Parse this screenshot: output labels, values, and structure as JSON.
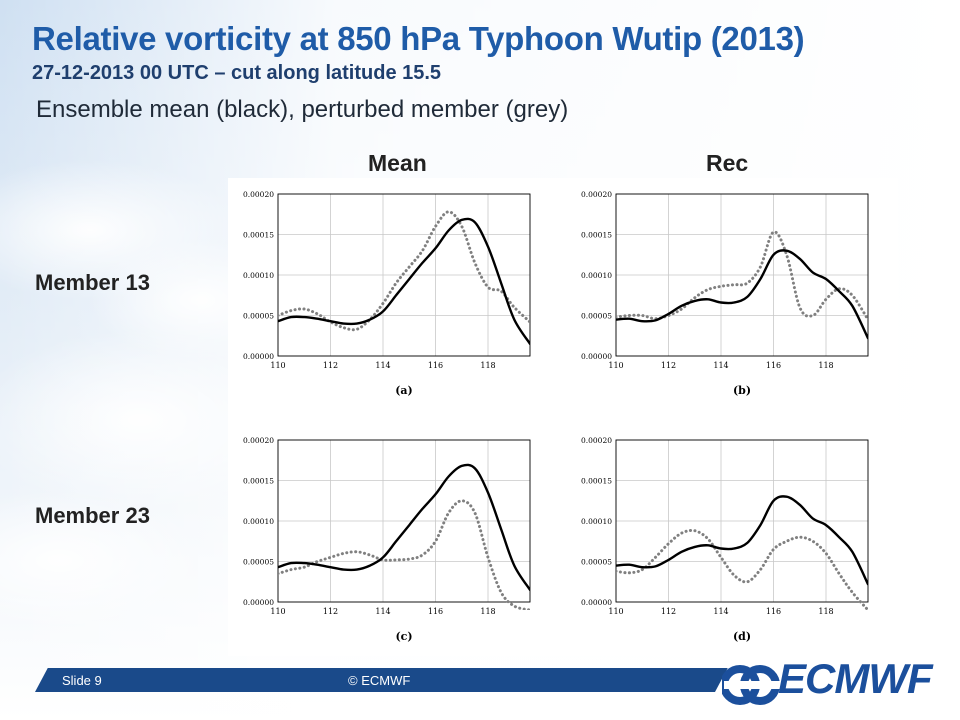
{
  "slide": {
    "title": "Relative vorticity at 850 hPa Typhoon Wutip (2013)",
    "subtitle": "27-12-2013  00 UTC – cut along latitude 15.5",
    "description": "Ensemble mean (black), perturbed member (grey)",
    "column_headers": [
      "Mean",
      "Rec"
    ],
    "row_headers": [
      "Member 13",
      "Member 23"
    ],
    "footer_slide": "Slide 9",
    "footer_copyright": "© ECMWF",
    "logo_text": "ECMWF",
    "colors": {
      "title": "#1f5ca8",
      "footer_bar": "#1a4a8a",
      "logo": "#1b4f9c",
      "mean_line": "#000000",
      "member_line": "#808080"
    }
  },
  "chart_data": [
    {
      "type": "line",
      "panel_label": "(a)",
      "xlim": [
        110,
        119.6
      ],
      "ylim": [
        0,
        0.0002
      ],
      "xticks": [
        "110",
        "112",
        "114",
        "116",
        "118"
      ],
      "yticks": [
        "0.00000",
        "0.00005",
        "0.00010",
        "0.00015",
        "0.00020"
      ],
      "grid": true,
      "x": [
        110,
        110.5,
        111,
        111.5,
        112,
        112.5,
        113,
        113.5,
        114,
        114.5,
        115,
        115.5,
        116,
        116.5,
        117,
        117.5,
        118,
        118.5,
        119,
        119.6
      ],
      "series": [
        {
          "style": "solid",
          "color": "#000000",
          "values": [
            4.3e-05,
            4.8e-05,
            4.8e-05,
            4.6e-05,
            4.3e-05,
            4e-05,
            4e-05,
            4.5e-05,
            5.5e-05,
            7.5e-05,
            9.5e-05,
            0.000115,
            0.000133,
            0.000155,
            0.000168,
            0.000165,
            0.000135,
            9e-05,
            4.5e-05,
            1.5e-05
          ]
        },
        {
          "style": "dotted",
          "color": "#808080",
          "values": [
            5e-05,
            5.6e-05,
            5.8e-05,
            5.2e-05,
            4.2e-05,
            3.5e-05,
            3.3e-05,
            4.5e-05,
            6.5e-05,
            9e-05,
            0.00011,
            0.00013,
            0.00016,
            0.000178,
            0.00016,
            0.000115,
            8.5e-05,
            8e-05,
            6e-05,
            4.2e-05
          ]
        }
      ]
    },
    {
      "type": "line",
      "panel_label": "(b)",
      "xlim": [
        110,
        119.6
      ],
      "ylim": [
        0,
        0.0002
      ],
      "xticks": [
        "110",
        "112",
        "114",
        "116",
        "118"
      ],
      "yticks": [
        "0.00000",
        "0.00005",
        "0.00010",
        "0.00015",
        "0.00020"
      ],
      "grid": true,
      "x": [
        110,
        110.5,
        111,
        111.5,
        112,
        112.5,
        113,
        113.5,
        114,
        114.5,
        115,
        115.5,
        116,
        116.5,
        117,
        117.5,
        118,
        118.5,
        119,
        119.6
      ],
      "series": [
        {
          "style": "solid",
          "color": "#000000",
          "values": [
            4.5e-05,
            4.6e-05,
            4.3e-05,
            4.4e-05,
            5.2e-05,
            6.2e-05,
            6.8e-05,
            7e-05,
            6.6e-05,
            6.6e-05,
            7.3e-05,
            9.5e-05,
            0.000125,
            0.00013,
            0.00012,
            0.000103,
            9.5e-05,
            8e-05,
            6.2e-05,
            2.2e-05
          ]
        },
        {
          "style": "dotted",
          "color": "#808080",
          "values": [
            4.8e-05,
            5e-05,
            5e-05,
            4.6e-05,
            5e-05,
            5.8e-05,
            7.2e-05,
            8.2e-05,
            8.6e-05,
            8.8e-05,
            9e-05,
            0.00011,
            0.000153,
            0.000125,
            6e-05,
            5e-05,
            7e-05,
            8.3e-05,
            7.5e-05,
            4.5e-05
          ]
        }
      ]
    },
    {
      "type": "line",
      "panel_label": "(c)",
      "xlim": [
        110,
        119.6
      ],
      "ylim": [
        0,
        0.0002
      ],
      "xticks": [
        "110",
        "112",
        "114",
        "116",
        "118"
      ],
      "yticks": [
        "0.00000",
        "0.00005",
        "0.00010",
        "0.00015",
        "0.00020"
      ],
      "grid": true,
      "x": [
        110,
        110.5,
        111,
        111.5,
        112,
        112.5,
        113,
        113.5,
        114,
        114.5,
        115,
        115.5,
        116,
        116.5,
        117,
        117.5,
        118,
        118.5,
        119,
        119.6
      ],
      "series": [
        {
          "style": "solid",
          "color": "#000000",
          "values": [
            4.3e-05,
            4.8e-05,
            4.8e-05,
            4.6e-05,
            4.3e-05,
            4e-05,
            4e-05,
            4.5e-05,
            5.5e-05,
            7.5e-05,
            9.5e-05,
            0.000115,
            0.000133,
            0.000155,
            0.000168,
            0.000165,
            0.000135,
            9e-05,
            4.5e-05,
            1.5e-05
          ]
        },
        {
          "style": "dotted",
          "color": "#808080",
          "values": [
            3.5e-05,
            4e-05,
            4.3e-05,
            5e-05,
            5.5e-05,
            6e-05,
            6.2e-05,
            5.8e-05,
            5.2e-05,
            5.2e-05,
            5.3e-05,
            5.8e-05,
            7.5e-05,
            0.00011,
            0.000125,
            0.00011,
            5.5e-05,
            1.2e-05,
            -5e-06,
            -1e-05
          ]
        }
      ]
    },
    {
      "type": "line",
      "panel_label": "(d)",
      "xlim": [
        110,
        119.6
      ],
      "ylim": [
        0,
        0.0002
      ],
      "xticks": [
        "110",
        "112",
        "114",
        "116",
        "118"
      ],
      "yticks": [
        "0.00000",
        "0.00005",
        "0.00010",
        "0.00015",
        "0.00020"
      ],
      "grid": true,
      "x": [
        110,
        110.5,
        111,
        111.5,
        112,
        112.5,
        113,
        113.5,
        114,
        114.5,
        115,
        115.5,
        116,
        116.5,
        117,
        117.5,
        118,
        118.5,
        119,
        119.6
      ],
      "series": [
        {
          "style": "solid",
          "color": "#000000",
          "values": [
            4.5e-05,
            4.6e-05,
            4.3e-05,
            4.4e-05,
            5.2e-05,
            6.2e-05,
            6.8e-05,
            7e-05,
            6.6e-05,
            6.6e-05,
            7.3e-05,
            9.5e-05,
            0.000125,
            0.00013,
            0.00012,
            0.000103,
            9.5e-05,
            8e-05,
            6.2e-05,
            2.2e-05
          ]
        },
        {
          "style": "dotted",
          "color": "#808080",
          "values": [
            3.8e-05,
            3.6e-05,
            4e-05,
            5.5e-05,
            7.2e-05,
            8.5e-05,
            8.8e-05,
            7.8e-05,
            5.5e-05,
            3.3e-05,
            2.5e-05,
            4e-05,
            6.5e-05,
            7.5e-05,
            8e-05,
            7.5e-05,
            6e-05,
            3.5e-05,
            1.2e-05,
            -1e-05
          ]
        }
      ]
    }
  ]
}
